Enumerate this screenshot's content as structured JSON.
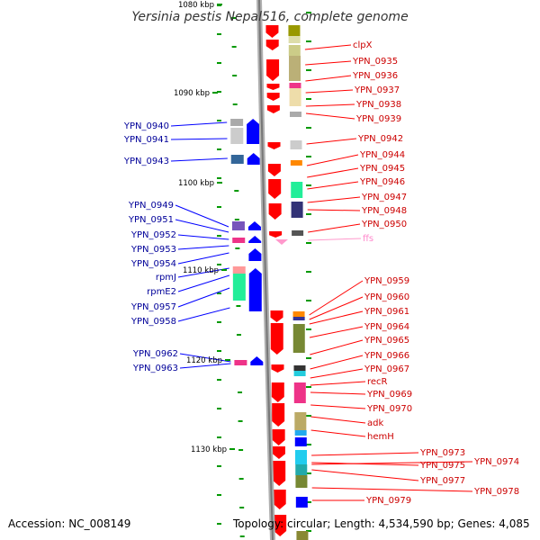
{
  "title": "Yersinia pestis Nepal516, complete genome",
  "footer": {
    "accession": "Accession: NC_008149",
    "topology": "Topology: circular; Length: 4,534,590 bp; Genes: 4,085"
  },
  "colors": {
    "forward": "#ff0000",
    "reverse": "#0000ff",
    "rna": "#ff99cc",
    "backbone": "#888888",
    "tick": "#009900",
    "forward_label": "#cc0000",
    "reverse_label": "#000099",
    "rna_label": "#ff88cc"
  },
  "kbp_labels": [
    "1080 kbp",
    "1090 kbp",
    "1100 kbp",
    "1110 kbp",
    "1120 kbp",
    "1130 kbp"
  ],
  "left_labels": [
    "YPN_0940",
    "YPN_0941",
    "YPN_0943",
    "YPN_0949",
    "YPN_0951",
    "YPN_0952",
    "YPN_0953",
    "YPN_0954",
    "rpmJ",
    "rpmE2",
    "YPN_0957",
    "YPN_0958",
    "YPN_0962",
    "YPN_0963"
  ],
  "right_labels": [
    "clpX",
    "YPN_0935",
    "YPN_0936",
    "YPN_0937",
    "YPN_0938",
    "YPN_0939",
    "YPN_0942",
    "YPN_0944",
    "YPN_0945",
    "YPN_0946",
    "YPN_0947",
    "YPN_0948",
    "YPN_0950",
    "ffs",
    "YPN_0959",
    "YPN_0960",
    "YPN_0961",
    "YPN_0964",
    "YPN_0965",
    "YPN_0966",
    "YPN_0967",
    "recR",
    "YPN_0969",
    "YPN_0970",
    "adk",
    "hemH",
    "YPN_0973",
    "YPN_0975",
    "YPN_0974",
    "YPN_0977",
    "YPN_0978",
    "YPN_0979"
  ]
}
